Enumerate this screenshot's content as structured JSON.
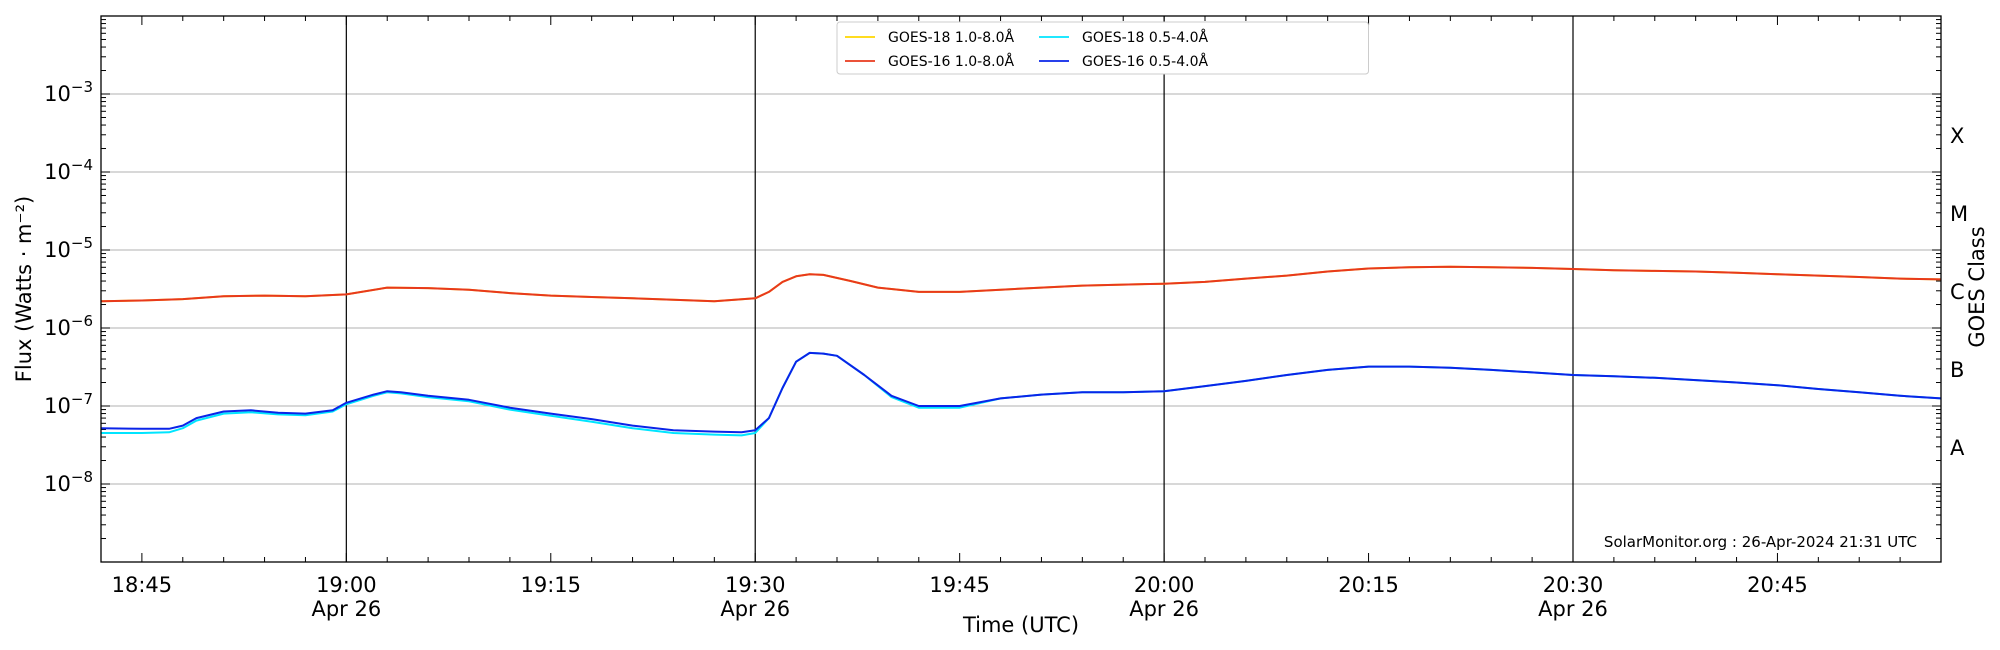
{
  "chart_data": {
    "type": "line",
    "ylabel": "Flux (Watts · m⁻²)",
    "xlabel": "Time (UTC)",
    "y2label": "GOES Class",
    "yscale": "log",
    "ylim": [
      1e-09,
      0.01
    ],
    "xlim": [
      "18:42",
      "20:57"
    ],
    "grid": "horizontal at decades",
    "legend_position": "top-center",
    "credit": "SolarMonitor.org : 26-Apr-2024 21:31 UTC",
    "y_ticks": [
      {
        "exp": "−8",
        "value": 1e-08
      },
      {
        "exp": "−7",
        "value": 1e-07
      },
      {
        "exp": "−6",
        "value": 1e-06
      },
      {
        "exp": "−5",
        "value": 1e-05
      },
      {
        "exp": "−4",
        "value": 0.0001
      },
      {
        "exp": "−3",
        "value": 0.001
      }
    ],
    "x_ticks": [
      {
        "time": "18:45",
        "label": "18:45",
        "date": ""
      },
      {
        "time": "19:00",
        "label": "19:00",
        "date": "Apr 26"
      },
      {
        "time": "19:15",
        "label": "19:15",
        "date": ""
      },
      {
        "time": "19:30",
        "label": "19:30",
        "date": "Apr 26"
      },
      {
        "time": "19:45",
        "label": "19:45",
        "date": ""
      },
      {
        "time": "20:00",
        "label": "20:00",
        "date": "Apr 26"
      },
      {
        "time": "20:15",
        "label": "20:15",
        "date": ""
      },
      {
        "time": "20:30",
        "label": "20:30",
        "date": "Apr 26"
      },
      {
        "time": "20:45",
        "label": "20:45",
        "date": ""
      }
    ],
    "vlines": [
      "19:00",
      "19:30",
      "20:00",
      "20:30"
    ],
    "goes_classes": [
      {
        "label": "A",
        "value": 3e-08
      },
      {
        "label": "B",
        "value": 3e-07
      },
      {
        "label": "C",
        "value": 3e-06
      },
      {
        "label": "M",
        "value": 3e-05
      },
      {
        "label": "X",
        "value": 0.0003
      }
    ],
    "series": [
      {
        "name": "GOES-18 1.0-8.0Å",
        "color": "#FFD700",
        "x": [
          "18:42",
          "18:45",
          "18:48",
          "18:51",
          "18:54",
          "18:57",
          "19:00",
          "19:03",
          "19:06",
          "19:09",
          "19:12",
          "19:15",
          "19:18",
          "19:21",
          "19:24",
          "19:27",
          "19:30",
          "19:31",
          "19:32",
          "19:33",
          "19:34",
          "19:35",
          "19:37",
          "19:39",
          "19:42",
          "19:45",
          "19:48",
          "19:51",
          "19:54",
          "19:57",
          "20:00",
          "20:03",
          "20:06",
          "20:09",
          "20:12",
          "20:15",
          "20:18",
          "20:21",
          "20:24",
          "20:27",
          "20:30",
          "20:33",
          "20:36",
          "20:39",
          "20:42",
          "20:45",
          "20:48",
          "20:51",
          "20:54",
          "20:57"
        ],
        "y": [
          2.2e-06,
          2.25e-06,
          2.35e-06,
          2.55e-06,
          2.6e-06,
          2.55e-06,
          2.7e-06,
          3.3e-06,
          3.25e-06,
          3.1e-06,
          2.8e-06,
          2.6e-06,
          2.5e-06,
          2.4e-06,
          2.3e-06,
          2.2e-06,
          2.4e-06,
          2.9e-06,
          3.9e-06,
          4.6e-06,
          4.9e-06,
          4.8e-06,
          4e-06,
          3.3e-06,
          2.9e-06,
          2.9e-06,
          3.1e-06,
          3.3e-06,
          3.5e-06,
          3.6e-06,
          3.7e-06,
          3.9e-06,
          4.3e-06,
          4.7e-06,
          5.3e-06,
          5.8e-06,
          6e-06,
          6.1e-06,
          6e-06,
          5.9e-06,
          5.7e-06,
          5.5e-06,
          5.4e-06,
          5.3e-06,
          5.1e-06,
          4.9e-06,
          4.7e-06,
          4.5e-06,
          4.3e-06,
          4.2e-06
        ]
      },
      {
        "name": "GOES-18 0.5-4.0Å",
        "color": "#00E5FF",
        "x": [
          "18:42",
          "18:45",
          "18:47",
          "18:48",
          "18:49",
          "18:51",
          "18:53",
          "18:55",
          "18:57",
          "18:59",
          "19:00",
          "19:02",
          "19:03",
          "19:04",
          "19:06",
          "19:09",
          "19:12",
          "19:15",
          "19:18",
          "19:21",
          "19:24",
          "19:27",
          "19:29",
          "19:30",
          "19:31",
          "19:32",
          "19:33",
          "19:34",
          "19:35",
          "19:36",
          "19:38",
          "19:40",
          "19:42",
          "19:45",
          "19:48",
          "19:51",
          "19:54",
          "19:57",
          "20:00",
          "20:03",
          "20:06",
          "20:09",
          "20:12",
          "20:15",
          "20:18",
          "20:21",
          "20:24",
          "20:27",
          "20:30",
          "20:33",
          "20:36",
          "20:39",
          "20:42",
          "20:45",
          "20:48",
          "20:51",
          "20:54",
          "20:57"
        ],
        "y": [
          4.5e-08,
          4.5e-08,
          4.6e-08,
          5.2e-08,
          6.5e-08,
          8e-08,
          8.3e-08,
          7.8e-08,
          7.6e-08,
          8.5e-08,
          1.05e-07,
          1.35e-07,
          1.5e-07,
          1.45e-07,
          1.3e-07,
          1.15e-07,
          9e-08,
          7.5e-08,
          6.3e-08,
          5.2e-08,
          4.5e-08,
          4.3e-08,
          4.2e-08,
          4.5e-08,
          7e-08,
          1.7e-07,
          3.7e-07,
          4.8e-07,
          4.7e-07,
          4.4e-07,
          2.5e-07,
          1.3e-07,
          9.5e-08,
          9.5e-08,
          1.25e-07,
          1.4e-07,
          1.5e-07,
          1.5e-07,
          1.55e-07,
          1.8e-07,
          2.1e-07,
          2.5e-07,
          2.9e-07,
          3.2e-07,
          3.2e-07,
          3.1e-07,
          2.9e-07,
          2.7e-07,
          2.5e-07,
          2.4e-07,
          2.3e-07,
          2.15e-07,
          2e-07,
          1.85e-07,
          1.65e-07,
          1.5e-07,
          1.35e-07,
          1.25e-07
        ]
      },
      {
        "name": "GOES-16 1.0-8.0Å",
        "color": "#E8391D",
        "x": [
          "18:42",
          "18:45",
          "18:48",
          "18:51",
          "18:54",
          "18:57",
          "19:00",
          "19:03",
          "19:06",
          "19:09",
          "19:12",
          "19:15",
          "19:18",
          "19:21",
          "19:24",
          "19:27",
          "19:30",
          "19:31",
          "19:32",
          "19:33",
          "19:34",
          "19:35",
          "19:37",
          "19:39",
          "19:42",
          "19:45",
          "19:48",
          "19:51",
          "19:54",
          "19:57",
          "20:00",
          "20:03",
          "20:06",
          "20:09",
          "20:12",
          "20:15",
          "20:18",
          "20:21",
          "20:24",
          "20:27",
          "20:30",
          "20:33",
          "20:36",
          "20:39",
          "20:42",
          "20:45",
          "20:48",
          "20:51",
          "20:54",
          "20:57"
        ],
        "y": [
          2.2e-06,
          2.25e-06,
          2.35e-06,
          2.55e-06,
          2.6e-06,
          2.55e-06,
          2.7e-06,
          3.3e-06,
          3.25e-06,
          3.1e-06,
          2.8e-06,
          2.6e-06,
          2.5e-06,
          2.4e-06,
          2.3e-06,
          2.2e-06,
          2.4e-06,
          2.9e-06,
          3.9e-06,
          4.6e-06,
          4.9e-06,
          4.8e-06,
          4e-06,
          3.3e-06,
          2.9e-06,
          2.9e-06,
          3.1e-06,
          3.3e-06,
          3.5e-06,
          3.6e-06,
          3.7e-06,
          3.9e-06,
          4.3e-06,
          4.7e-06,
          5.3e-06,
          5.8e-06,
          6e-06,
          6.1e-06,
          6e-06,
          5.9e-06,
          5.7e-06,
          5.5e-06,
          5.4e-06,
          5.3e-06,
          5.1e-06,
          4.9e-06,
          4.7e-06,
          4.5e-06,
          4.3e-06,
          4.2e-06
        ]
      },
      {
        "name": "GOES-16 0.5-4.0Å",
        "color": "#0A24E8",
        "x": [
          "18:42",
          "18:45",
          "18:47",
          "18:48",
          "18:49",
          "18:51",
          "18:53",
          "18:55",
          "18:57",
          "18:59",
          "19:00",
          "19:02",
          "19:03",
          "19:04",
          "19:06",
          "19:09",
          "19:12",
          "19:15",
          "19:18",
          "19:21",
          "19:24",
          "19:27",
          "19:29",
          "19:30",
          "19:31",
          "19:32",
          "19:33",
          "19:34",
          "19:35",
          "19:36",
          "19:38",
          "19:40",
          "19:42",
          "19:45",
          "19:48",
          "19:51",
          "19:54",
          "19:57",
          "20:00",
          "20:03",
          "20:06",
          "20:09",
          "20:12",
          "20:15",
          "20:18",
          "20:21",
          "20:24",
          "20:27",
          "20:30",
          "20:33",
          "20:36",
          "20:39",
          "20:42",
          "20:45",
          "20:48",
          "20:51",
          "20:54",
          "20:57"
        ],
        "y": [
          5.2e-08,
          5.1e-08,
          5.1e-08,
          5.6e-08,
          7e-08,
          8.5e-08,
          8.8e-08,
          8.2e-08,
          8e-08,
          8.8e-08,
          1.1e-07,
          1.4e-07,
          1.55e-07,
          1.5e-07,
          1.35e-07,
          1.2e-07,
          9.5e-08,
          8e-08,
          6.8e-08,
          5.6e-08,
          4.9e-08,
          4.7e-08,
          4.6e-08,
          4.9e-08,
          7e-08,
          1.7e-07,
          3.7e-07,
          4.8e-07,
          4.7e-07,
          4.4e-07,
          2.5e-07,
          1.35e-07,
          1e-07,
          1e-07,
          1.25e-07,
          1.4e-07,
          1.5e-07,
          1.5e-07,
          1.55e-07,
          1.8e-07,
          2.1e-07,
          2.5e-07,
          2.9e-07,
          3.2e-07,
          3.2e-07,
          3.1e-07,
          2.9e-07,
          2.7e-07,
          2.5e-07,
          2.4e-07,
          2.3e-07,
          2.15e-07,
          2e-07,
          1.85e-07,
          1.65e-07,
          1.5e-07,
          1.35e-07,
          1.25e-07
        ]
      }
    ],
    "legend_layout": [
      [
        "GOES-18 1.0-8.0Å",
        "GOES-18 0.5-4.0Å"
      ],
      [
        "GOES-16 1.0-8.0Å",
        "GOES-16 0.5-4.0Å"
      ]
    ]
  }
}
